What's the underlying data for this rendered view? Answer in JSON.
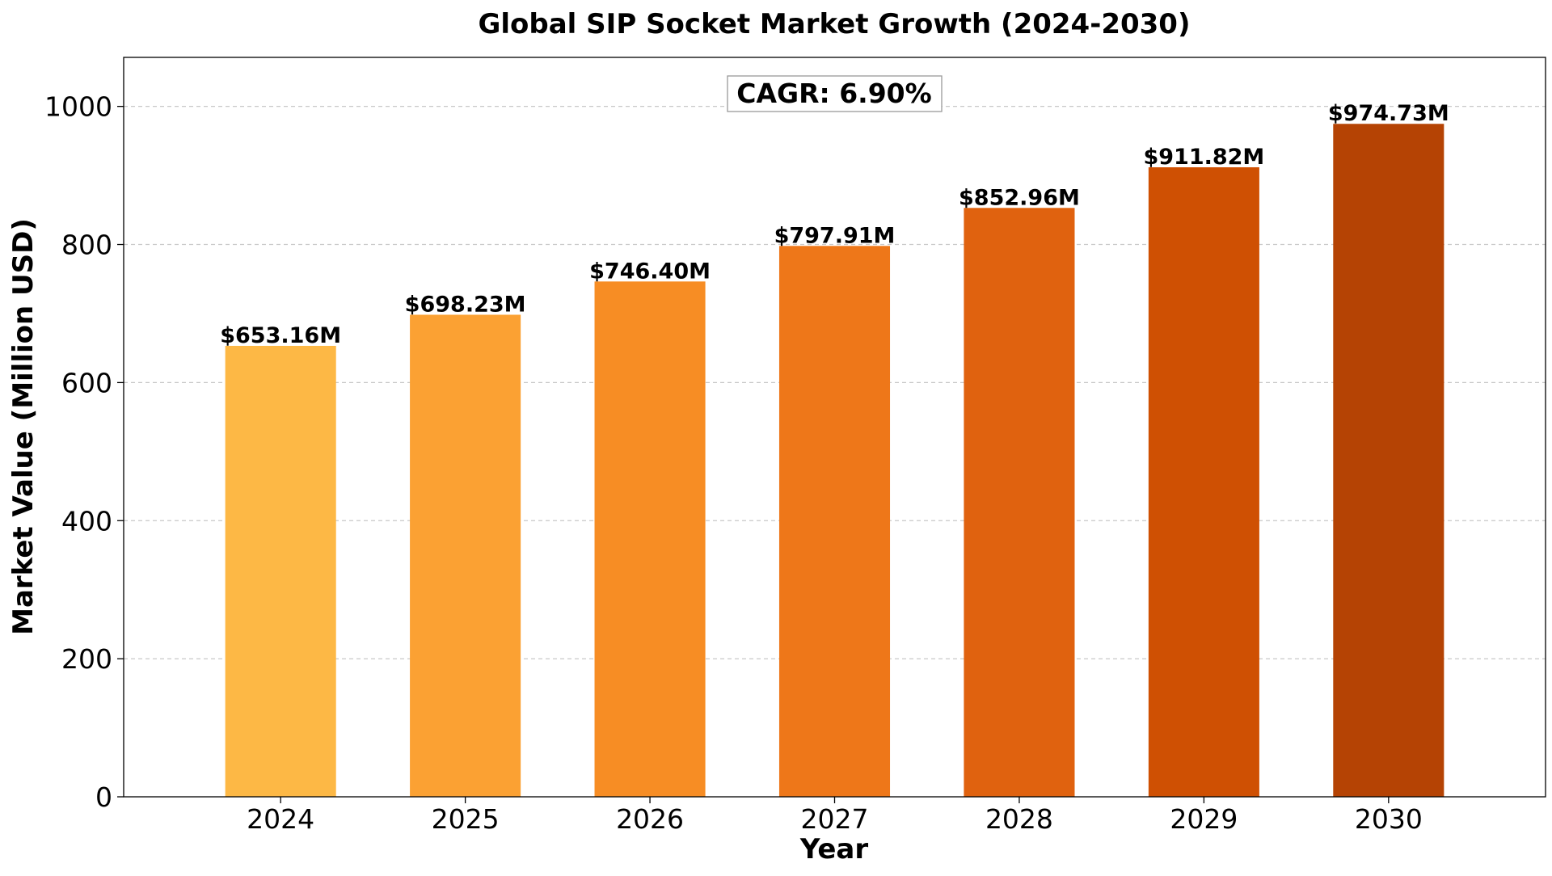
{
  "chart_data": {
    "type": "bar",
    "title": "Global SIP Socket Market Growth (2024-2030)",
    "xlabel": "Year",
    "ylabel": "Market Value (Million USD)",
    "categories": [
      "2024",
      "2025",
      "2026",
      "2027",
      "2028",
      "2029",
      "2030"
    ],
    "values": [
      653.16,
      698.23,
      746.4,
      797.91,
      852.96,
      911.82,
      974.73
    ],
    "data_labels": [
      "$653.16M",
      "$698.23M",
      "$746.40M",
      "$797.91M",
      "$852.96M",
      "$911.82M",
      "$974.73M"
    ],
    "colors": [
      "#FDB845",
      "#FBA133",
      "#F78D24",
      "#EE7719",
      "#E0620F",
      "#CF5003",
      "#B54304"
    ],
    "ylim": [
      0,
      1071
    ],
    "yticks": [
      "0",
      "200",
      "400",
      "600",
      "800",
      "1000"
    ],
    "grid": true,
    "grid_axis": "y",
    "annotation": "CAGR: 6.90%"
  }
}
